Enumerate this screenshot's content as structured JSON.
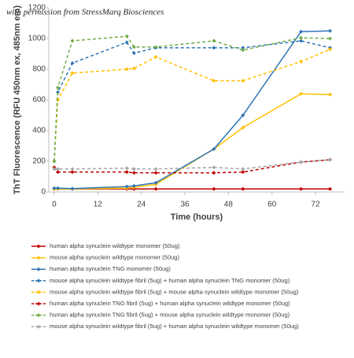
{
  "chart_data": {
    "type": "line",
    "annotation": "with permission from StressMarq Biosciences",
    "x_label": "Time (hours)",
    "y_label": "ThT Fluorescence (RFU 450nm ex, 485nm em)",
    "x": [
      0,
      1,
      5,
      20,
      22,
      28,
      44,
      52,
      68,
      76
    ],
    "xlim": [
      -1.5,
      80
    ],
    "xticks": [
      0,
      12,
      24,
      36,
      48,
      60,
      72
    ],
    "ylim": [
      0,
      1200
    ],
    "yticks": [
      0,
      200,
      400,
      600,
      800,
      1000,
      1200
    ],
    "grid": false,
    "legend": "bottom",
    "series": [
      {
        "name": "human alpha synuclein wildtype monomer (50ug)",
        "color": "#c00000",
        "dash": false,
        "values": [
          20,
          20,
          20,
          20,
          20,
          20,
          20,
          20,
          20,
          20
        ]
      },
      {
        "name": "mouse alpha synuclein wildtype monomer (50ug)",
        "color": "#ffc000",
        "dash": false,
        "values": [
          20,
          20,
          20,
          25,
          30,
          50,
          280,
          420,
          640,
          635
        ]
      },
      {
        "name": "human alpha synuclein TNG monomer (50ug)",
        "color": "#2e75b6",
        "dash": false,
        "values": [
          25,
          25,
          22,
          35,
          40,
          60,
          280,
          500,
          1045,
          1050
        ]
      },
      {
        "name": "mouse alpha synuclein wildtype fibril (5ug) + human alpha synuclein TNG monomer (50ug)",
        "color": "#2e75b6",
        "dash": true,
        "values": [
          200,
          650,
          840,
          975,
          905,
          940,
          940,
          940,
          985,
          940
        ]
      },
      {
        "name": "mouse alpha synuclein wildtype fibril (5ug) + mouse alpha synuclein wildtype monomer (50ug)",
        "color": "#ffc000",
        "dash": true,
        "values": [
          200,
          600,
          775,
          800,
          805,
          880,
          725,
          725,
          850,
          930
        ]
      },
      {
        "name": "human alpha synuclein TNG fibril (5ug) + human alpha synuclein wildtype monomer (50ug)",
        "color": "#c00000",
        "dash": true,
        "values": [
          160,
          130,
          130,
          130,
          125,
          125,
          125,
          130,
          195,
          210
        ]
      },
      {
        "name": "human alpha synuclein TNG fibril (5ug) + mouse alpha synuclein wildtype monomer (50ug)",
        "color": "#70ad47",
        "dash": true,
        "values": [
          200,
          680,
          985,
          1015,
          945,
          945,
          985,
          925,
          1005,
          1000
        ]
      },
      {
        "name": "mouse alpha synuclein wildtype fibril (5ug) + human alpha synuclein wildtype monomer (50ug)",
        "color": "#a5a5a5",
        "dash": true,
        "values": [
          150,
          150,
          150,
          155,
          150,
          150,
          160,
          150,
          195,
          210
        ]
      }
    ]
  }
}
